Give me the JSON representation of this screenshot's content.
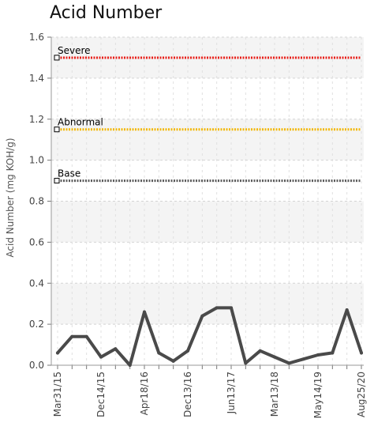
{
  "chart_data": {
    "type": "line",
    "title": "Acid Number",
    "ylabel": "Acid Number (mg KOH/g)",
    "xlabel": "",
    "ylim": [
      0,
      1.6
    ],
    "yticks": [
      "0.0",
      "0.2",
      "0.4",
      "0.6",
      "0.8",
      "1.0",
      "1.2",
      "1.4",
      "1.6"
    ],
    "xtick_labels": [
      "Mar31/15",
      "Dec14/15",
      "Apr18/16",
      "Dec13/16",
      "Jun13/17",
      "Mar13/18",
      "May14/19",
      "Aug25/20"
    ],
    "grid": true,
    "reference_lines": [
      {
        "label": "Severe",
        "value": 1.5,
        "color": "#e8201a"
      },
      {
        "label": "Abnormal",
        "value": 1.15,
        "color": "#f2b705"
      },
      {
        "label": "Base",
        "value": 0.9,
        "color": "#5a5a5a"
      }
    ],
    "series": [
      {
        "color": "#4a4a4a",
        "values": [
          0.06,
          0.14,
          0.14,
          0.04,
          0.08,
          0.0,
          0.26,
          0.06,
          0.02,
          0.07,
          0.24,
          0.28,
          0.28,
          0.01,
          0.07,
          0.04,
          0.01,
          0.03,
          0.05,
          0.06,
          0.27,
          0.06
        ]
      }
    ]
  }
}
